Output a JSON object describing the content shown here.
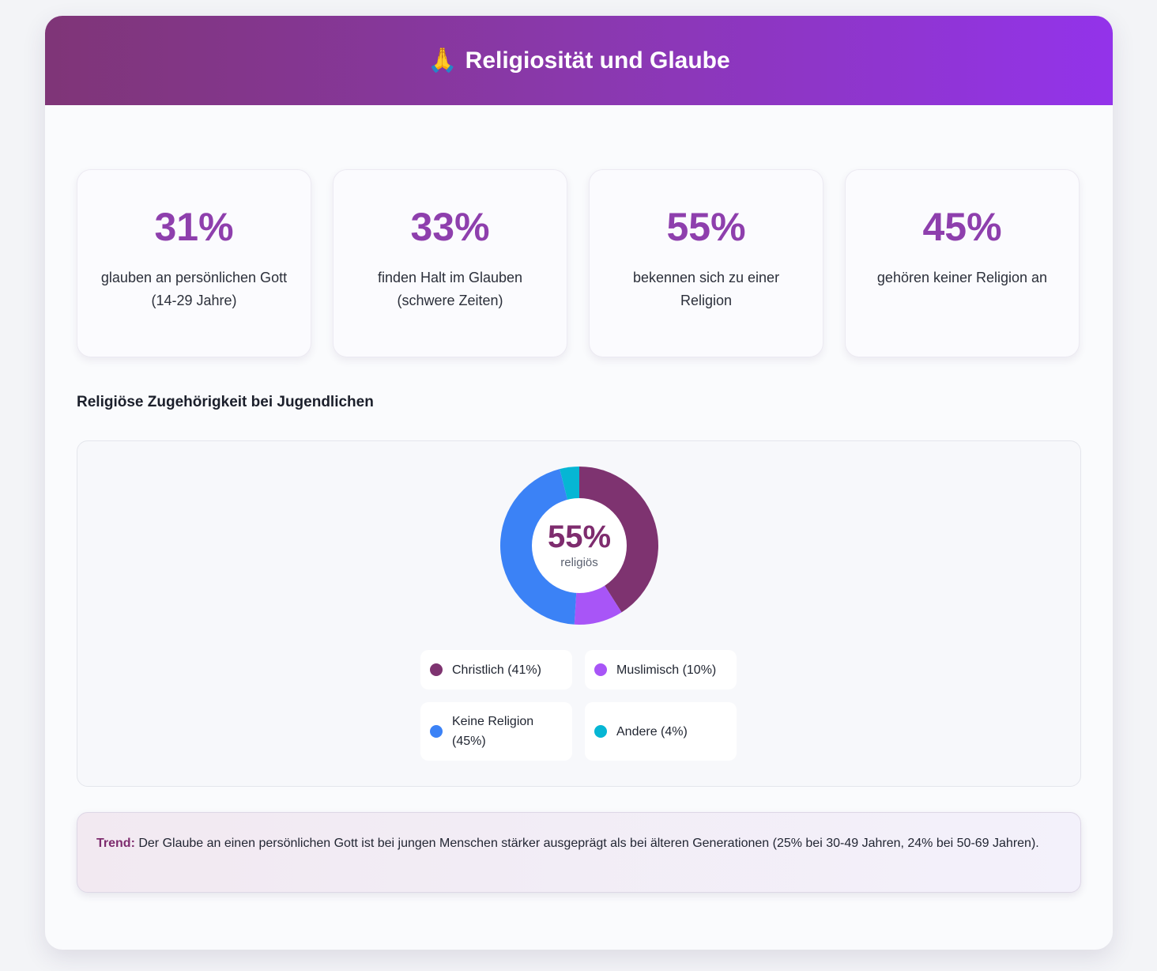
{
  "header": {
    "icon": "praying-hands-icon",
    "emoji": "🙏",
    "title": "Religiosität und Glaube"
  },
  "stats": [
    {
      "value": "31%",
      "label": "glauben an persönlichen Gott\n(14-29 Jahre)"
    },
    {
      "value": "33%",
      "label": "finden Halt im Glauben (schwere Zeiten)"
    },
    {
      "value": "55%",
      "label": "bekennen sich zu einer Religion"
    },
    {
      "value": "45%",
      "label": "gehören keiner Religion an"
    }
  ],
  "section_title": "Religiöse Zugehörigkeit bei Jugendlichen",
  "chart_data": {
    "type": "pie",
    "subtype": "donut",
    "center_value": "55%",
    "center_label": "religiös",
    "categories": [
      "Christlich",
      "Muslimisch",
      "Keine Religion",
      "Andere"
    ],
    "values": [
      41,
      10,
      45,
      4
    ],
    "legend_labels": [
      "Christlich (41%)",
      "Muslimisch (10%)",
      "Keine Religion (45%)",
      "Andere (4%)"
    ],
    "colors": [
      "#7e3370",
      "#a855f7",
      "#3b82f6",
      "#06b6d4"
    ],
    "legend_position": "bottom"
  },
  "trend": {
    "label": "Trend:",
    "text": " Der Glaube an einen persönlichen Gott ist bei jungen Menschen stärker ausgeprägt als bei älteren Generationen (25% bei 30-49 Jahren, 24% bei 50-69 Jahren)."
  }
}
